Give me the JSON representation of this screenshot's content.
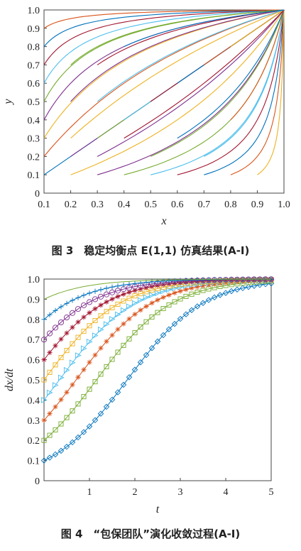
{
  "chart_data": [
    {
      "type": "line",
      "caption": "图 3　稳定均衡点 E(1,1) 仿真结果(A-Ⅰ)",
      "xlabel": "x",
      "ylabel": "y",
      "xlim": [
        0.1,
        1.0
      ],
      "ylim": [
        0,
        1.0
      ],
      "xticks": [
        "0.1",
        "0.2",
        "0.3",
        "0.4",
        "0.5",
        "0.6",
        "0.7",
        "0.8",
        "0.9",
        "1.0"
      ],
      "yticks": [
        "0",
        "0.1",
        "0.2",
        "0.3",
        "0.4",
        "0.5",
        "0.6",
        "0.7",
        "0.8",
        "0.9",
        "1.0"
      ],
      "grid": false,
      "convergence_point": [
        1.0,
        1.0
      ],
      "start_points": [
        [
          0.1,
          0.1
        ],
        [
          0.1,
          0.2
        ],
        [
          0.1,
          0.3
        ],
        [
          0.1,
          0.4
        ],
        [
          0.1,
          0.5
        ],
        [
          0.1,
          0.6
        ],
        [
          0.1,
          0.7
        ],
        [
          0.1,
          0.8
        ],
        [
          0.1,
          0.9
        ],
        [
          0.2,
          0.1
        ],
        [
          0.3,
          0.1
        ],
        [
          0.4,
          0.1
        ],
        [
          0.5,
          0.1
        ],
        [
          0.6,
          0.1
        ],
        [
          0.7,
          0.1
        ],
        [
          0.8,
          0.1
        ],
        [
          0.9,
          0.1
        ],
        [
          0.2,
          0.2
        ],
        [
          0.3,
          0.3
        ],
        [
          0.4,
          0.4
        ],
        [
          0.5,
          0.5
        ],
        [
          0.6,
          0.6
        ],
        [
          0.7,
          0.7
        ],
        [
          0.8,
          0.8
        ],
        [
          0.3,
          0.2
        ],
        [
          0.5,
          0.2
        ],
        [
          0.7,
          0.2
        ],
        [
          0.4,
          0.3
        ],
        [
          0.6,
          0.3
        ],
        [
          0.8,
          0.4
        ],
        [
          0.2,
          0.3
        ],
        [
          0.2,
          0.5
        ],
        [
          0.2,
          0.7
        ],
        [
          0.3,
          0.5
        ],
        [
          0.3,
          0.7
        ],
        [
          0.4,
          0.8
        ]
      ],
      "colors": [
        "#0072BD",
        "#D95319",
        "#EDB120",
        "#7E2F8E",
        "#77AC30",
        "#4DBEEE",
        "#A2142F"
      ]
    },
    {
      "type": "line",
      "caption": "图 4　“包保团队”演化收敛过程(A-Ⅰ)",
      "xlabel": "t",
      "ylabel": "dx/dt",
      "xlim": [
        0,
        5
      ],
      "ylim": [
        0,
        1.0
      ],
      "xticks": [
        "1",
        "2",
        "3",
        "4",
        "5"
      ],
      "yticks": [
        "0",
        "0.1",
        "0.2",
        "0.3",
        "0.4",
        "0.5",
        "0.6",
        "0.7",
        "0.8",
        "0.9",
        "1.0"
      ],
      "grid": false,
      "x": [
        0,
        0.125,
        0.25,
        0.375,
        0.5,
        0.625,
        0.75,
        0.875,
        1,
        1.125,
        1.25,
        1.375,
        1.5,
        1.625,
        1.75,
        1.875,
        2,
        2.125,
        2.25,
        2.375,
        2.5,
        2.625,
        2.75,
        2.875,
        3,
        3.125,
        3.25,
        3.375,
        3.5,
        3.625,
        3.75,
        3.875,
        4,
        4.125,
        4.25,
        4.375,
        4.5,
        4.625,
        4.75,
        4.875,
        5
      ],
      "series": [
        {
          "x0": 0.1,
          "r": 1.2,
          "marker": "diamond",
          "color": "#0072BD"
        },
        {
          "x0": 0.2,
          "r": 1.2,
          "marker": "square",
          "color": "#77AC30"
        },
        {
          "x0": 0.3,
          "r": 1.2,
          "marker": "asterisk",
          "color": "#D95319"
        },
        {
          "x0": 0.4,
          "r": 1.2,
          "marker": "triangle",
          "color": "#4DBEEE"
        },
        {
          "x0": 0.5,
          "r": 1.2,
          "marker": "square",
          "color": "#EDB120"
        },
        {
          "x0": 0.6,
          "r": 1.2,
          "marker": "asterisk",
          "color": "#A2142F"
        },
        {
          "x0": 0.7,
          "r": 1.2,
          "marker": "circle",
          "color": "#7E2F8E"
        },
        {
          "x0": 0.8,
          "r": 1.2,
          "marker": "plus",
          "color": "#0072BD"
        },
        {
          "x0": 0.9,
          "r": 1.2,
          "marker": "none",
          "color": "#77AC30"
        }
      ]
    }
  ]
}
